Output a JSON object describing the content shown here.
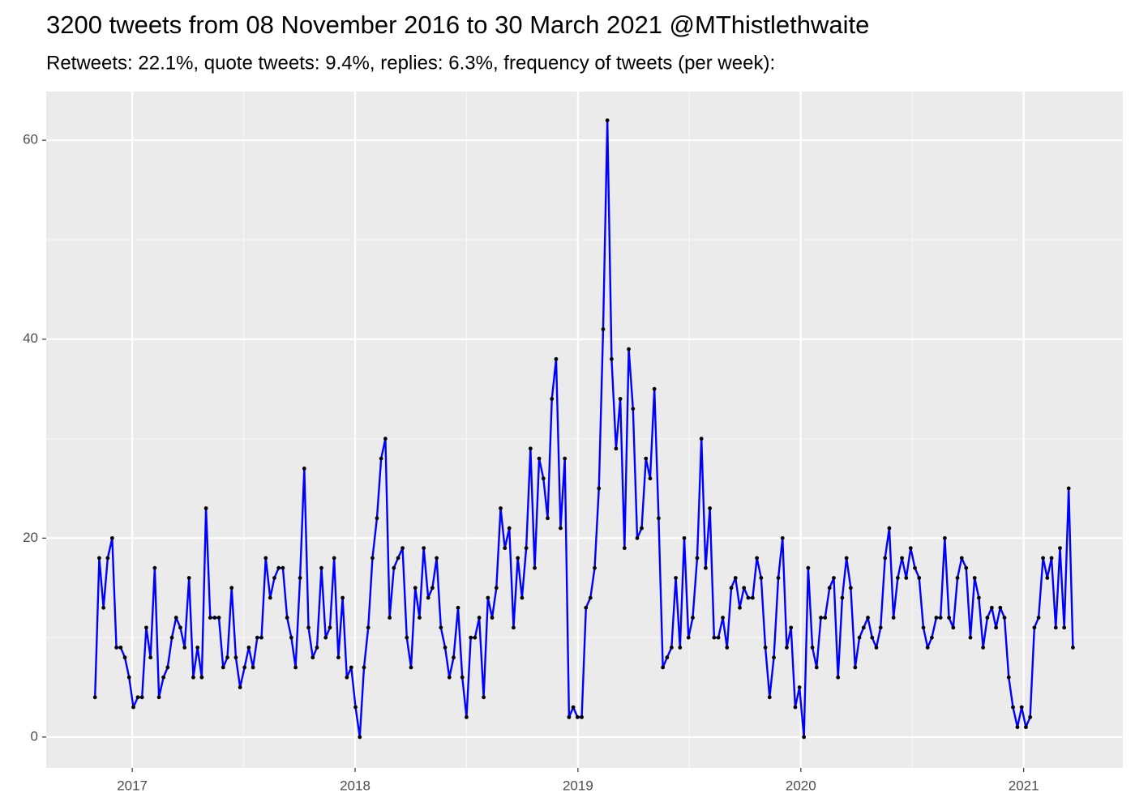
{
  "chart_data": {
    "type": "line",
    "title": "3200 tweets from 08 November 2016 to 30 March 2021 @MThistlethwaite",
    "subtitle": "Retweets: 22.1%, quote tweets: 9.4%, replies: 6.3%, frequency of tweets (per week):",
    "x": [
      2016.833,
      2016.852,
      2016.871,
      2016.89,
      2016.91,
      2016.929,
      2016.948,
      2016.967,
      2016.986,
      2017.005,
      2017.025,
      2017.044,
      2017.063,
      2017.082,
      2017.101,
      2017.12,
      2017.14,
      2017.159,
      2017.178,
      2017.197,
      2017.216,
      2017.235,
      2017.255,
      2017.274,
      2017.293,
      2017.312,
      2017.331,
      2017.35,
      2017.37,
      2017.389,
      2017.408,
      2017.427,
      2017.446,
      2017.465,
      2017.484,
      2017.504,
      2017.523,
      2017.542,
      2017.561,
      2017.58,
      2017.599,
      2017.619,
      2017.638,
      2017.657,
      2017.676,
      2017.695,
      2017.714,
      2017.733,
      2017.753,
      2017.772,
      2017.791,
      2017.81,
      2017.829,
      2017.849,
      2017.868,
      2017.887,
      2017.906,
      2017.925,
      2017.944,
      2017.963,
      2017.983,
      2018.002,
      2018.021,
      2018.04,
      2018.059,
      2018.078,
      2018.098,
      2018.117,
      2018.136,
      2018.155,
      2018.174,
      2018.193,
      2018.213,
      2018.232,
      2018.251,
      2018.27,
      2018.289,
      2018.308,
      2018.328,
      2018.347,
      2018.366,
      2018.385,
      2018.404,
      2018.423,
      2018.442,
      2018.462,
      2018.481,
      2018.5,
      2018.519,
      2018.538,
      2018.557,
      2018.577,
      2018.596,
      2018.615,
      2018.634,
      2018.653,
      2018.672,
      2018.692,
      2018.711,
      2018.73,
      2018.749,
      2018.768,
      2018.787,
      2018.806,
      2018.826,
      2018.845,
      2018.864,
      2018.883,
      2018.902,
      2018.922,
      2018.941,
      2018.96,
      2018.979,
      2018.998,
      2019.017,
      2019.036,
      2019.056,
      2019.075,
      2019.094,
      2019.113,
      2019.132,
      2019.151,
      2019.171,
      2019.19,
      2019.209,
      2019.228,
      2019.247,
      2019.266,
      2019.286,
      2019.305,
      2019.324,
      2019.343,
      2019.362,
      2019.381,
      2019.4,
      2019.42,
      2019.439,
      2019.458,
      2019.477,
      2019.496,
      2019.515,
      2019.535,
      2019.554,
      2019.573,
      2019.592,
      2019.611,
      2019.63,
      2019.65,
      2019.669,
      2019.688,
      2019.707,
      2019.726,
      2019.745,
      2019.764,
      2019.784,
      2019.803,
      2019.822,
      2019.841,
      2019.86,
      2019.879,
      2019.899,
      2019.918,
      2019.937,
      2019.956,
      2019.975,
      2019.994,
      2020.014,
      2020.033,
      2020.052,
      2020.071,
      2020.09,
      2020.109,
      2020.129,
      2020.148,
      2020.167,
      2020.186,
      2020.205,
      2020.224,
      2020.244,
      2020.263,
      2020.282,
      2020.301,
      2020.32,
      2020.339,
      2020.358,
      2020.378,
      2020.397,
      2020.416,
      2020.435,
      2020.454,
      2020.473,
      2020.493,
      2020.512,
      2020.531,
      2020.55,
      2020.569,
      2020.588,
      2020.608,
      2020.627,
      2020.646,
      2020.665,
      2020.684,
      2020.703,
      2020.722,
      2020.742,
      2020.761,
      2020.78,
      2020.799,
      2020.818,
      2020.837,
      2020.857,
      2020.876,
      2020.895,
      2020.914,
      2020.933,
      2020.952,
      2020.972,
      2020.991,
      2021.01,
      2021.029,
      2021.048,
      2021.067,
      2021.087,
      2021.106,
      2021.125,
      2021.144,
      2021.163,
      2021.182,
      2021.202,
      2021.221
    ],
    "values": [
      4,
      18,
      13,
      18,
      20,
      9,
      9,
      8,
      6,
      3,
      4,
      4,
      11,
      8,
      17,
      4,
      6,
      7,
      10,
      12,
      11,
      9,
      16,
      6,
      9,
      6,
      23,
      12,
      12,
      12,
      7,
      8,
      15,
      8,
      5,
      7,
      9,
      7,
      10,
      10,
      18,
      14,
      16,
      17,
      17,
      12,
      10,
      7,
      16,
      27,
      11,
      8,
      9,
      17,
      10,
      11,
      18,
      8,
      14,
      6,
      7,
      3,
      0,
      7,
      11,
      18,
      22,
      28,
      30,
      12,
      17,
      18,
      19,
      10,
      7,
      15,
      12,
      19,
      14,
      15,
      18,
      11,
      9,
      6,
      8,
      13,
      6,
      2,
      10,
      10,
      12,
      4,
      14,
      12,
      15,
      23,
      19,
      21,
      11,
      18,
      14,
      19,
      29,
      17,
      28,
      26,
      22,
      34,
      38,
      21,
      28,
      2,
      3,
      2,
      2,
      13,
      14,
      17,
      25,
      41,
      62,
      38,
      29,
      34,
      19,
      39,
      33,
      20,
      21,
      28,
      26,
      35,
      22,
      7,
      8,
      9,
      16,
      9,
      20,
      10,
      12,
      18,
      30,
      17,
      23,
      10,
      10,
      12,
      9,
      15,
      16,
      13,
      15,
      14,
      14,
      18,
      16,
      9,
      4,
      8,
      16,
      20,
      9,
      11,
      3,
      5,
      0,
      17,
      9,
      7,
      12,
      12,
      15,
      16,
      6,
      14,
      18,
      15,
      7,
      10,
      11,
      12,
      10,
      9,
      11,
      18,
      21,
      12,
      16,
      18,
      16,
      19,
      17,
      16,
      11,
      9,
      10,
      12,
      12,
      20,
      12,
      11,
      16,
      18,
      17,
      10,
      16,
      14,
      9,
      12,
      13,
      11,
      13,
      12,
      6,
      3,
      1,
      3,
      1,
      2,
      11,
      12,
      18,
      16,
      18,
      11,
      19,
      11,
      25,
      9
    ],
    "color": "#0000ff",
    "point_color": "#000000",
    "xlim": [
      2016.614,
      2021.445
    ],
    "xticks": [
      2017,
      2018,
      2019,
      2020,
      2021
    ],
    "ylim": [
      -3.1,
      64.9
    ],
    "yticks": [
      0,
      20,
      40,
      60
    ],
    "grid": true
  }
}
